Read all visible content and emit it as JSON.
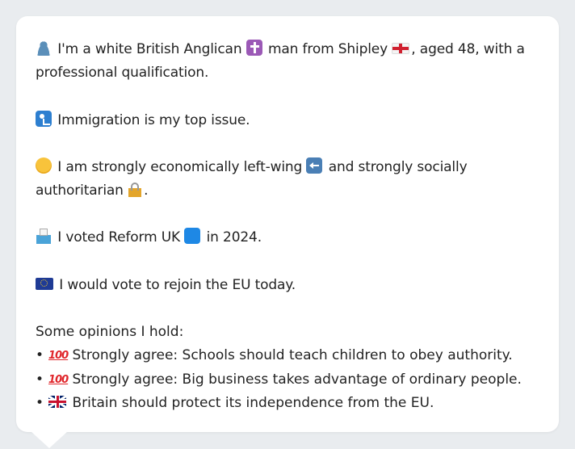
{
  "profile": {
    "identity_pre": "I'm a white British Anglican",
    "identity_mid": "man from Shipley",
    "identity_post": ", aged 48, with a professional qualification.",
    "top_issue": "Immigration is my top issue.",
    "ideology_pre": "I am strongly economically left-wing",
    "ideology_mid": "and strongly socially authoritarian",
    "ideology_post": ".",
    "vote_pre": "I voted Reform UK",
    "vote_post": "in 2024.",
    "eu": "I would vote to rejoin the EU today."
  },
  "opinions": {
    "heading": "Some opinions I hold:",
    "bullet": "•",
    "hundred": "100",
    "items": [
      {
        "text": "Strongly agree: Schools should teach children to obey authority."
      },
      {
        "text": "Strongly agree: Big business takes advantage of ordinary people."
      },
      {
        "text": "Britain should protect its independence from the EU."
      }
    ]
  },
  "icons": {
    "person": "bust-in-silhouette-icon",
    "cross": "latin-cross-icon",
    "england": "england-flag-icon",
    "passport": "passport-control-icon",
    "thinking": "thinking-face-icon",
    "left_arrow": "left-arrow-icon",
    "lock": "locked-icon",
    "ballot": "ballot-box-icon",
    "blue_square": "blue-square-icon",
    "eu_flag": "eu-flag-icon",
    "hundred": "hundred-points-icon",
    "uk_flag": "uk-flag-icon"
  },
  "colors": {
    "background": "#e9ecef",
    "bubble": "#ffffff",
    "text": "#222222"
  }
}
